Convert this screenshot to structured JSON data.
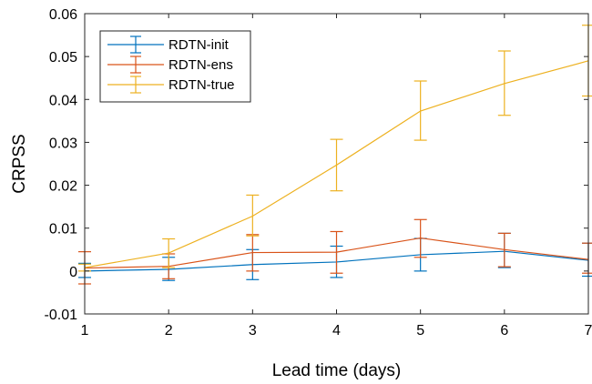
{
  "chart_data": {
    "type": "line",
    "xlabel": "Lead time (days)",
    "ylabel": "CRPSS",
    "xlim": [
      1,
      7
    ],
    "ylim": [
      -0.01,
      0.06
    ],
    "xticks": [
      "1",
      "2",
      "3",
      "4",
      "5",
      "6",
      "7"
    ],
    "yticks": [
      "-0.01",
      "0",
      "0.01",
      "0.02",
      "0.03",
      "0.04",
      "0.05",
      "0.06"
    ],
    "grid": false,
    "legend_position": "top-left",
    "x": [
      1,
      2,
      3,
      4,
      5,
      6,
      7
    ],
    "series": [
      {
        "name": "RDTN-init",
        "color": "#0072BD",
        "values": [
          0.0,
          0.0004,
          0.0015,
          0.0021,
          0.0038,
          0.0046,
          0.0025
        ],
        "lower": [
          -0.0015,
          -0.0022,
          -0.002,
          -0.0015,
          0.0,
          0.0008,
          -0.0012
        ],
        "upper": [
          0.0018,
          0.0032,
          0.005,
          0.0058,
          0.0076,
          0.0088,
          0.0065
        ]
      },
      {
        "name": "RDTN-ens",
        "color": "#D95319",
        "values": [
          0.0007,
          0.0011,
          0.0043,
          0.0044,
          0.0077,
          0.005,
          0.0027
        ],
        "lower": [
          -0.003,
          -0.0018,
          0.0,
          -0.0005,
          0.0032,
          0.001,
          -0.0005
        ],
        "upper": [
          0.0045,
          0.004,
          0.0085,
          0.0092,
          0.012,
          0.0088,
          0.0065
        ]
      },
      {
        "name": "RDTN-true",
        "color": "#EDB120",
        "values": [
          0.0008,
          0.0042,
          0.0128,
          0.0247,
          0.0373,
          0.0437,
          0.049
        ],
        "lower": [
          0.0,
          0.0008,
          0.0082,
          0.0187,
          0.0305,
          0.0363,
          0.0408
        ],
        "upper": [
          0.0016,
          0.0075,
          0.0177,
          0.0307,
          0.0443,
          0.0513,
          0.0573
        ]
      }
    ]
  }
}
